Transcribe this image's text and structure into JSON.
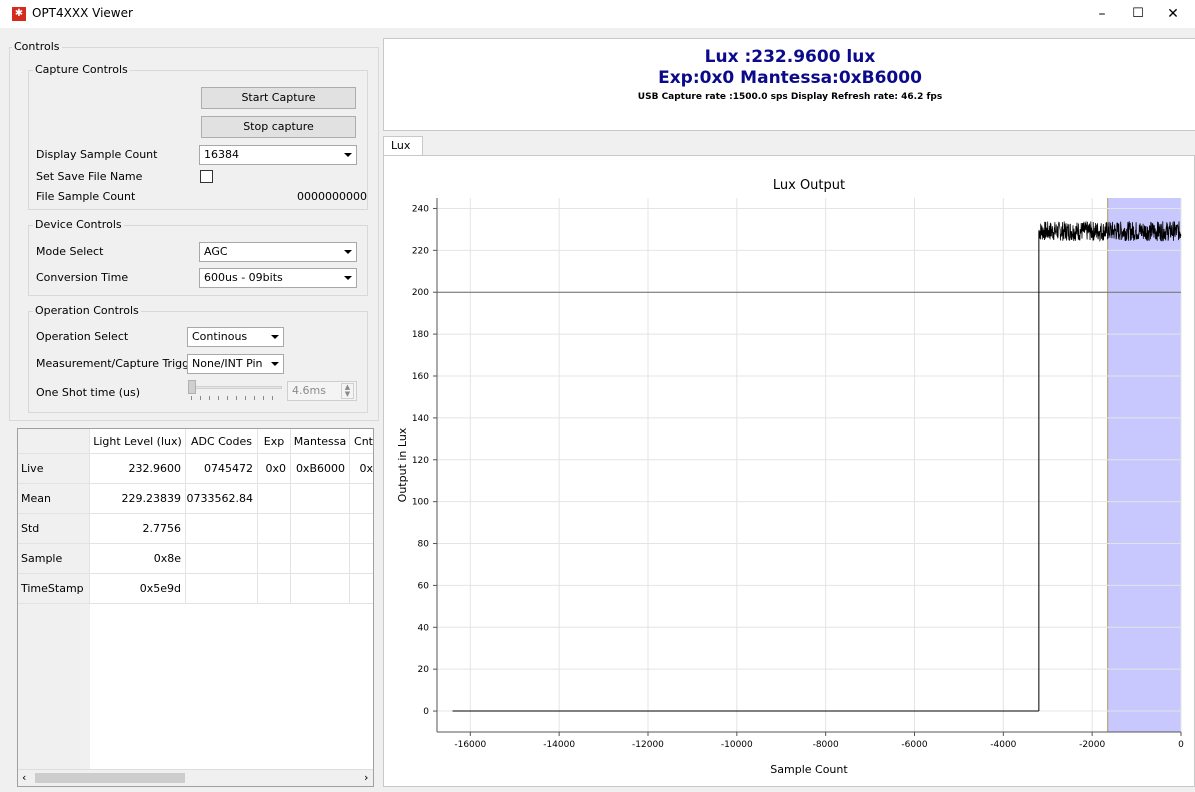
{
  "window": {
    "title": "OPT4XXX Viewer",
    "icon_glyph": "✱",
    "minimize": "–",
    "maximize": "☐",
    "close": "✕"
  },
  "controls": {
    "group_title": "Controls",
    "capture": {
      "title": "Capture Controls",
      "start_label": "Start Capture",
      "stop_label": "Stop capture",
      "display_sample_count_label": "Display Sample Count",
      "display_sample_count_value": "16384",
      "set_save_file_label": "Set Save File Name",
      "file_sample_count_label": "File Sample Count",
      "file_sample_count_value": "0000000000"
    },
    "device": {
      "title": "Device Controls",
      "mode_label": "Mode Select",
      "mode_value": "AGC",
      "conversion_label": "Conversion Time",
      "conversion_value": "600us - 09bits"
    },
    "operation": {
      "title": "Operation Controls",
      "op_select_label": "Operation Select",
      "op_select_value": "Continous",
      "trigger_label": "Measurement/Capture Trigger",
      "trigger_value": "None/INT Pin",
      "oneshot_label": "One Shot time (us)",
      "oneshot_value": "4.6ms",
      "oneshot_level": 0
    }
  },
  "table": {
    "headers": [
      "",
      "Light Level (lux)",
      "ADC Codes",
      "Exp",
      "Mantessa",
      "Cnt"
    ],
    "rows": [
      [
        "Live",
        "232.9600",
        "0745472",
        "0x0",
        "0xB6000",
        "0x"
      ],
      [
        "Mean",
        "229.23839",
        "0733562.84",
        "",
        "",
        ""
      ],
      [
        "Std",
        "2.7756",
        "",
        "",
        "",
        ""
      ],
      [
        "Sample",
        "0x8e",
        "",
        "",
        "",
        ""
      ],
      [
        "TimeStamp",
        "0x5e9d",
        "",
        "",
        "",
        ""
      ]
    ]
  },
  "readout": {
    "lux": "Lux :232.9600 lux",
    "exp": "Exp:0x0 Mantessa:0xB6000",
    "rates": "USB Capture rate :1500.0 sps Display Refresh rate: 46.2 fps"
  },
  "tab_label": "Lux",
  "chart_data": {
    "type": "line",
    "title": "Lux Output",
    "xlabel": "Sample Count",
    "ylabel": "Output in Lux",
    "xlim": [
      -16750,
      0
    ],
    "ylim": [
      -10,
      245
    ],
    "xticks": [
      -16000,
      -14000,
      -12000,
      -10000,
      -8000,
      -6000,
      -4000,
      -2000,
      0
    ],
    "yticks": [
      0,
      20,
      40,
      60,
      80,
      100,
      120,
      140,
      160,
      180,
      200,
      220,
      240
    ],
    "grid": true,
    "series": [
      {
        "color": "#000000",
        "baseline": 0,
        "step_at": -3200,
        "level_mean": 229.2,
        "level_std": 2.78
      }
    ],
    "highlight_region": {
      "x_from": -1650,
      "x_to": 0,
      "color": "#c8c8ff"
    },
    "reference_line_y": 200
  },
  "colors": {
    "readout_text": "#0a0a8a",
    "highlight": "#c8c8ff"
  }
}
